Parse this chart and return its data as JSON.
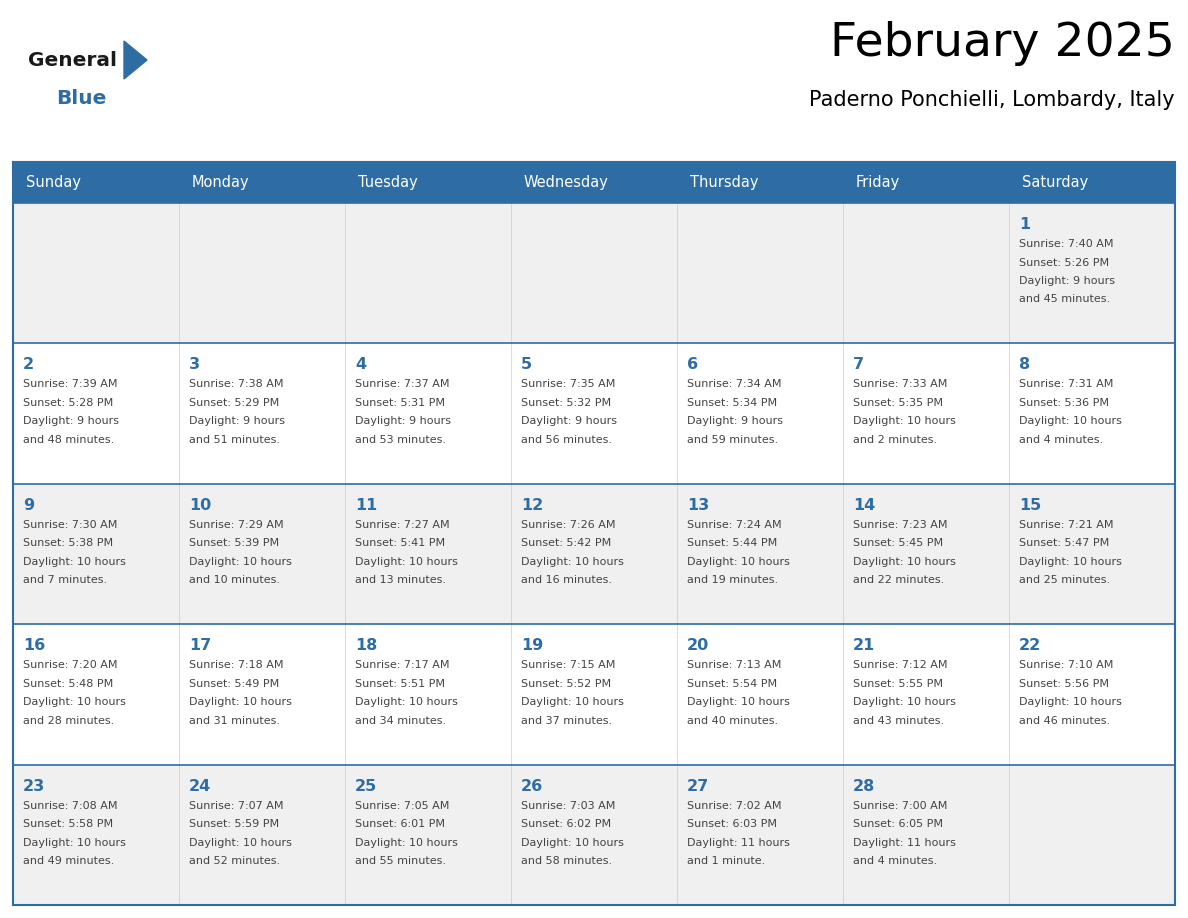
{
  "title": "February 2025",
  "subtitle": "Paderno Ponchielli, Lombardy, Italy",
  "header_bg": "#2E6DA4",
  "header_text_color": "#FFFFFF",
  "cell_bg_even": "#F0F0F0",
  "cell_bg_odd": "#FFFFFF",
  "day_number_color": "#2E6DA4",
  "cell_text_color": "#444444",
  "grid_line_color": "#2E6DA4",
  "divider_color": "#CCCCCC",
  "logo_general_color": "#1a1a1a",
  "logo_blue_color": "#2E6DA4",
  "days_of_week": [
    "Sunday",
    "Monday",
    "Tuesday",
    "Wednesday",
    "Thursday",
    "Friday",
    "Saturday"
  ],
  "calendar_data": [
    [
      null,
      null,
      null,
      null,
      null,
      null,
      {
        "day": "1",
        "sunrise": "7:40 AM",
        "sunset": "5:26 PM",
        "dl1": "9 hours",
        "dl2": "and 45 minutes."
      }
    ],
    [
      {
        "day": "2",
        "sunrise": "7:39 AM",
        "sunset": "5:28 PM",
        "dl1": "9 hours",
        "dl2": "and 48 minutes."
      },
      {
        "day": "3",
        "sunrise": "7:38 AM",
        "sunset": "5:29 PM",
        "dl1": "9 hours",
        "dl2": "and 51 minutes."
      },
      {
        "day": "4",
        "sunrise": "7:37 AM",
        "sunset": "5:31 PM",
        "dl1": "9 hours",
        "dl2": "and 53 minutes."
      },
      {
        "day": "5",
        "sunrise": "7:35 AM",
        "sunset": "5:32 PM",
        "dl1": "9 hours",
        "dl2": "and 56 minutes."
      },
      {
        "day": "6",
        "sunrise": "7:34 AM",
        "sunset": "5:34 PM",
        "dl1": "9 hours",
        "dl2": "and 59 minutes."
      },
      {
        "day": "7",
        "sunrise": "7:33 AM",
        "sunset": "5:35 PM",
        "dl1": "10 hours",
        "dl2": "and 2 minutes."
      },
      {
        "day": "8",
        "sunrise": "7:31 AM",
        "sunset": "5:36 PM",
        "dl1": "10 hours",
        "dl2": "and 4 minutes."
      }
    ],
    [
      {
        "day": "9",
        "sunrise": "7:30 AM",
        "sunset": "5:38 PM",
        "dl1": "10 hours",
        "dl2": "and 7 minutes."
      },
      {
        "day": "10",
        "sunrise": "7:29 AM",
        "sunset": "5:39 PM",
        "dl1": "10 hours",
        "dl2": "and 10 minutes."
      },
      {
        "day": "11",
        "sunrise": "7:27 AM",
        "sunset": "5:41 PM",
        "dl1": "10 hours",
        "dl2": "and 13 minutes."
      },
      {
        "day": "12",
        "sunrise": "7:26 AM",
        "sunset": "5:42 PM",
        "dl1": "10 hours",
        "dl2": "and 16 minutes."
      },
      {
        "day": "13",
        "sunrise": "7:24 AM",
        "sunset": "5:44 PM",
        "dl1": "10 hours",
        "dl2": "and 19 minutes."
      },
      {
        "day": "14",
        "sunrise": "7:23 AM",
        "sunset": "5:45 PM",
        "dl1": "10 hours",
        "dl2": "and 22 minutes."
      },
      {
        "day": "15",
        "sunrise": "7:21 AM",
        "sunset": "5:47 PM",
        "dl1": "10 hours",
        "dl2": "and 25 minutes."
      }
    ],
    [
      {
        "day": "16",
        "sunrise": "7:20 AM",
        "sunset": "5:48 PM",
        "dl1": "10 hours",
        "dl2": "and 28 minutes."
      },
      {
        "day": "17",
        "sunrise": "7:18 AM",
        "sunset": "5:49 PM",
        "dl1": "10 hours",
        "dl2": "and 31 minutes."
      },
      {
        "day": "18",
        "sunrise": "7:17 AM",
        "sunset": "5:51 PM",
        "dl1": "10 hours",
        "dl2": "and 34 minutes."
      },
      {
        "day": "19",
        "sunrise": "7:15 AM",
        "sunset": "5:52 PM",
        "dl1": "10 hours",
        "dl2": "and 37 minutes."
      },
      {
        "day": "20",
        "sunrise": "7:13 AM",
        "sunset": "5:54 PM",
        "dl1": "10 hours",
        "dl2": "and 40 minutes."
      },
      {
        "day": "21",
        "sunrise": "7:12 AM",
        "sunset": "5:55 PM",
        "dl1": "10 hours",
        "dl2": "and 43 minutes."
      },
      {
        "day": "22",
        "sunrise": "7:10 AM",
        "sunset": "5:56 PM",
        "dl1": "10 hours",
        "dl2": "and 46 minutes."
      }
    ],
    [
      {
        "day": "23",
        "sunrise": "7:08 AM",
        "sunset": "5:58 PM",
        "dl1": "10 hours",
        "dl2": "and 49 minutes."
      },
      {
        "day": "24",
        "sunrise": "7:07 AM",
        "sunset": "5:59 PM",
        "dl1": "10 hours",
        "dl2": "and 52 minutes."
      },
      {
        "day": "25",
        "sunrise": "7:05 AM",
        "sunset": "6:01 PM",
        "dl1": "10 hours",
        "dl2": "and 55 minutes."
      },
      {
        "day": "26",
        "sunrise": "7:03 AM",
        "sunset": "6:02 PM",
        "dl1": "10 hours",
        "dl2": "and 58 minutes."
      },
      {
        "day": "27",
        "sunrise": "7:02 AM",
        "sunset": "6:03 PM",
        "dl1": "11 hours",
        "dl2": "and 1 minute."
      },
      {
        "day": "28",
        "sunrise": "7:00 AM",
        "sunset": "6:05 PM",
        "dl1": "11 hours",
        "dl2": "and 4 minutes."
      },
      null
    ]
  ]
}
